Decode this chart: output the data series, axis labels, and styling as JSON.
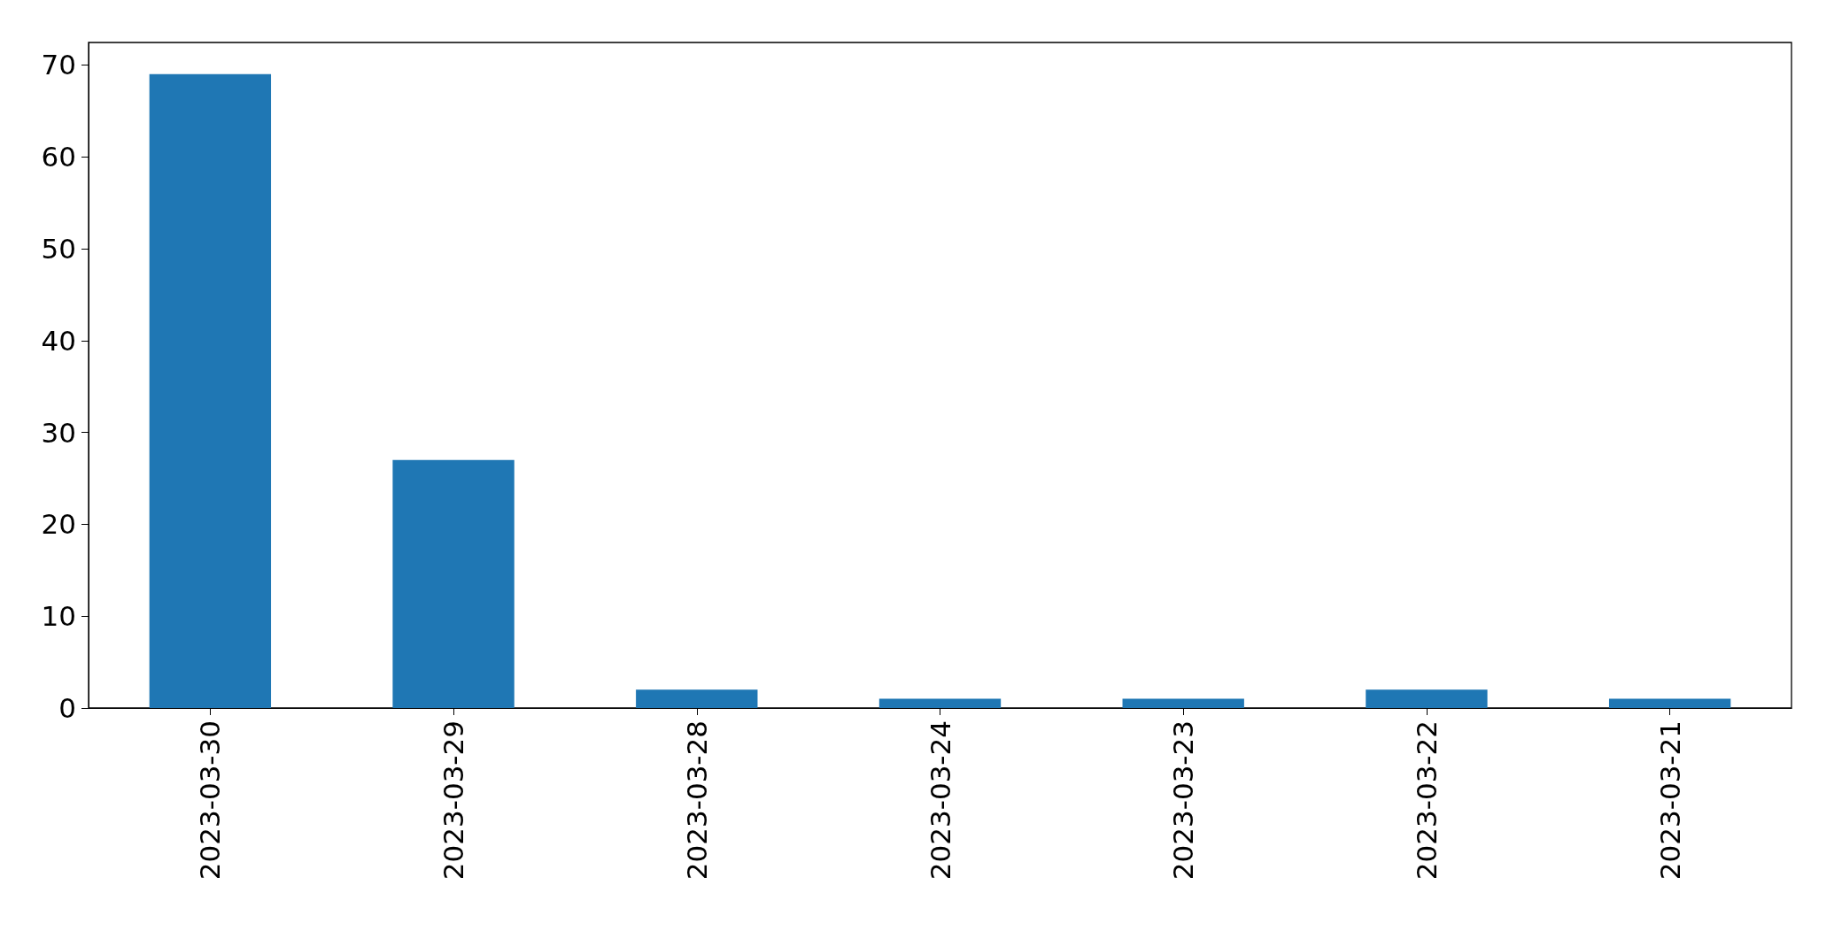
{
  "chart_data": {
    "type": "bar",
    "categories": [
      "2023-03-30",
      "2023-03-29",
      "2023-03-28",
      "2023-03-24",
      "2023-03-23",
      "2023-03-22",
      "2023-03-21"
    ],
    "values": [
      69,
      27,
      2,
      1,
      1,
      2,
      1
    ],
    "color": "#1f77b4",
    "ylim": [
      0,
      72.45
    ],
    "yticks": [
      0,
      10,
      20,
      30,
      40,
      50,
      60,
      70
    ],
    "grid": false
  }
}
